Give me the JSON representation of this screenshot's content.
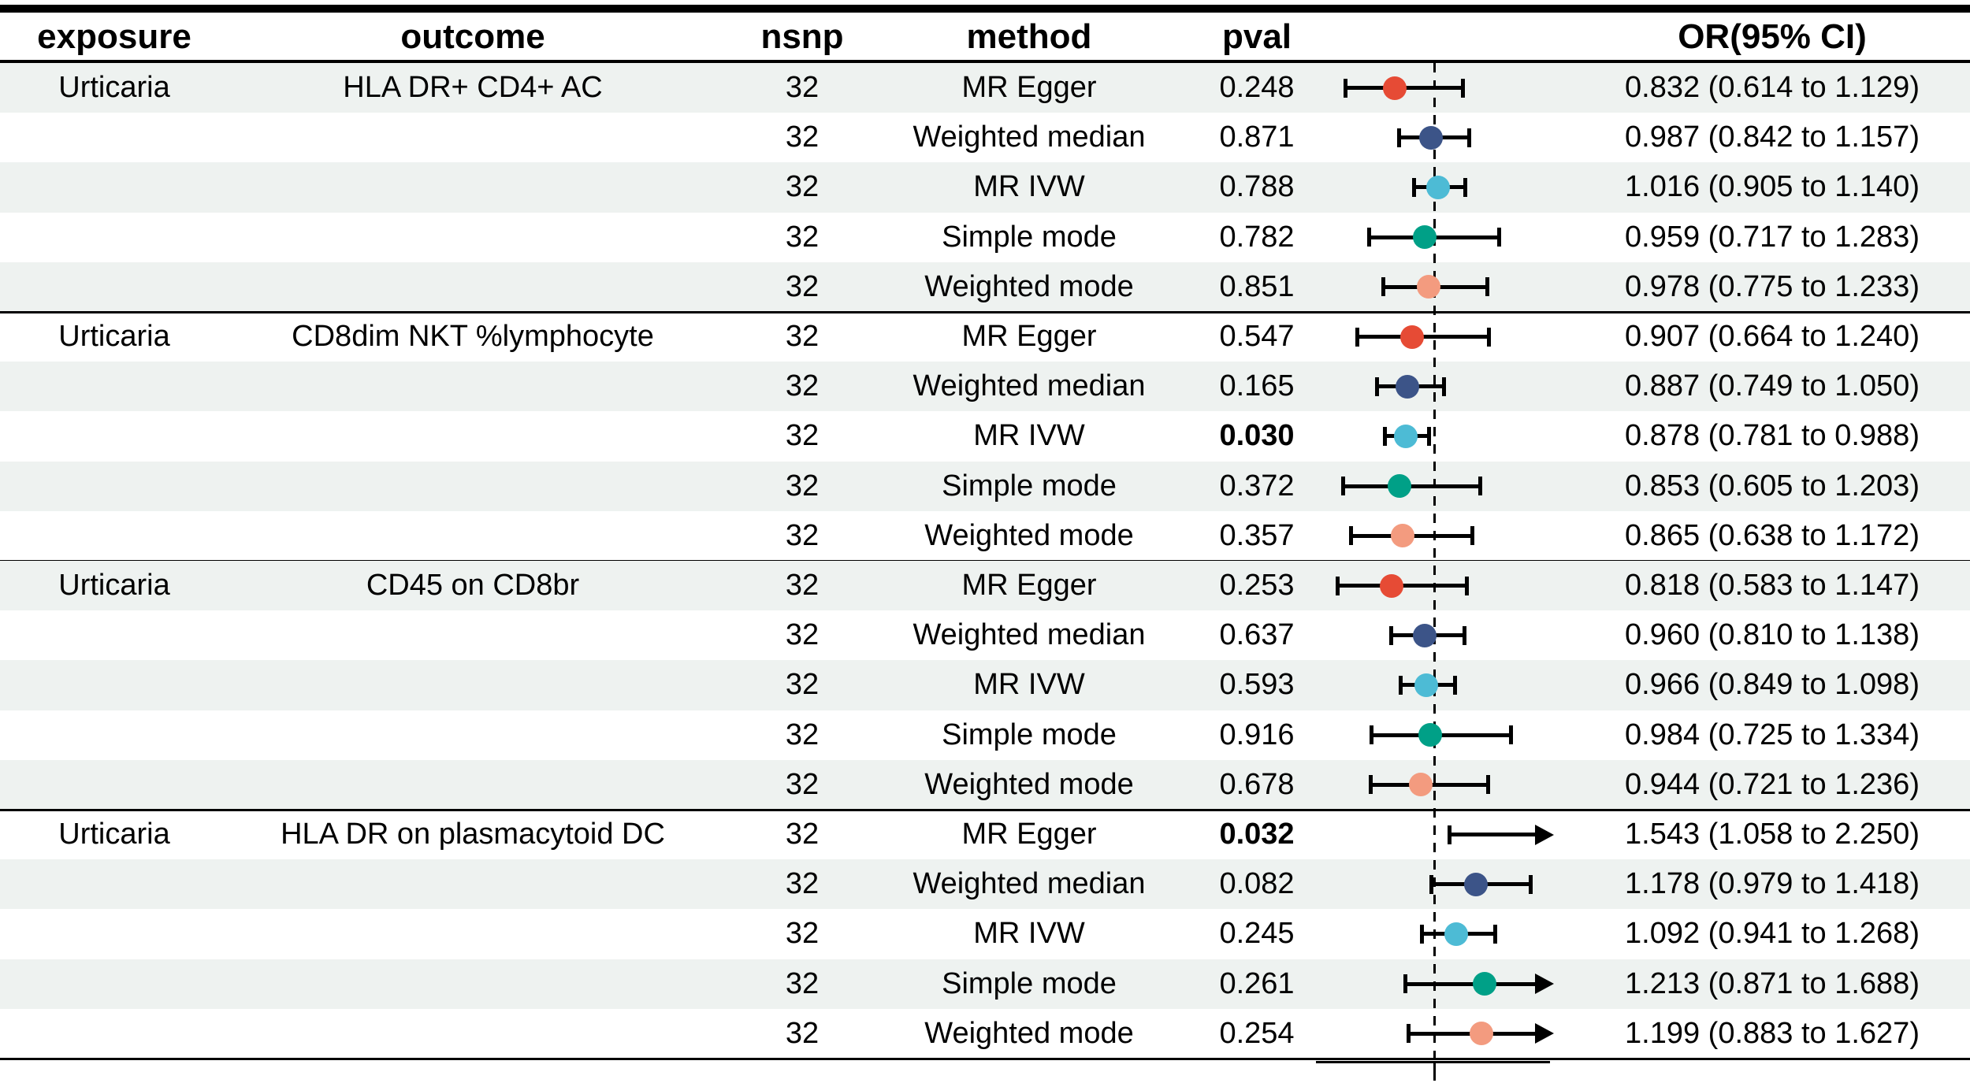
{
  "header": {
    "exposure": "exposure",
    "outcome": "outcome",
    "nsnp": "nsnp",
    "method": "method",
    "pval": "pval",
    "or_ci": "OR(95% CI)"
  },
  "colors": {
    "row_shade": "#EEF2F0",
    "line": "#000000",
    "methods": {
      "MR Egger": "#E64B35",
      "Weighted median": "#3C5488",
      "MR IVW": "#4DBBD5",
      "Simple mode": "#00A087",
      "Weighted mode": "#F39B7F"
    }
  },
  "chart_data": {
    "type": "forest",
    "x_reference": 1.0,
    "x_clip_max": 1.5,
    "scale": "linear",
    "groups": [
      {
        "exposure": "Urticaria",
        "outcome": "HLA DR+ CD4+ AC",
        "rows": [
          {
            "nsnp": "32",
            "method": "MR Egger",
            "pval": "0.248",
            "bold": false,
            "or": 0.832,
            "lo": 0.614,
            "hi": 1.129,
            "or_text": "0.832 (0.614 to 1.129)"
          },
          {
            "nsnp": "32",
            "method": "Weighted median",
            "pval": "0.871",
            "bold": false,
            "or": 0.987,
            "lo": 0.842,
            "hi": 1.157,
            "or_text": "0.987 (0.842 to 1.157)"
          },
          {
            "nsnp": "32",
            "method": "MR IVW",
            "pval": "0.788",
            "bold": false,
            "or": 1.016,
            "lo": 0.905,
            "hi": 1.14,
            "or_text": "1.016 (0.905 to 1.140)"
          },
          {
            "nsnp": "32",
            "method": "Simple mode",
            "pval": "0.782",
            "bold": false,
            "or": 0.959,
            "lo": 0.717,
            "hi": 1.283,
            "or_text": "0.959 (0.717 to 1.283)"
          },
          {
            "nsnp": "32",
            "method": "Weighted mode",
            "pval": "0.851",
            "bold": false,
            "or": 0.978,
            "lo": 0.775,
            "hi": 1.233,
            "or_text": "0.978 (0.775 to 1.233)"
          }
        ]
      },
      {
        "exposure": "Urticaria",
        "outcome": "CD8dim NKT %lymphocyte",
        "rows": [
          {
            "nsnp": "32",
            "method": "MR Egger",
            "pval": "0.547",
            "bold": false,
            "or": 0.907,
            "lo": 0.664,
            "hi": 1.24,
            "or_text": "0.907 (0.664 to 1.240)"
          },
          {
            "nsnp": "32",
            "method": "Weighted median",
            "pval": "0.165",
            "bold": false,
            "or": 0.887,
            "lo": 0.749,
            "hi": 1.05,
            "or_text": "0.887 (0.749 to 1.050)"
          },
          {
            "nsnp": "32",
            "method": "MR IVW",
            "pval": "0.030",
            "bold": true,
            "or": 0.878,
            "lo": 0.781,
            "hi": 0.988,
            "or_text": "0.878 (0.781 to 0.988)"
          },
          {
            "nsnp": "32",
            "method": "Simple mode",
            "pval": "0.372",
            "bold": false,
            "or": 0.853,
            "lo": 0.605,
            "hi": 1.203,
            "or_text": "0.853 (0.605 to 1.203)"
          },
          {
            "nsnp": "32",
            "method": "Weighted mode",
            "pval": "0.357",
            "bold": false,
            "or": 0.865,
            "lo": 0.638,
            "hi": 1.172,
            "or_text": "0.865 (0.638 to 1.172)"
          }
        ]
      },
      {
        "exposure": "Urticaria",
        "outcome": "CD45 on CD8br",
        "rows": [
          {
            "nsnp": "32",
            "method": "MR Egger",
            "pval": "0.253",
            "bold": false,
            "or": 0.818,
            "lo": 0.583,
            "hi": 1.147,
            "or_text": "0.818 (0.583 to 1.147)"
          },
          {
            "nsnp": "32",
            "method": "Weighted median",
            "pval": "0.637",
            "bold": false,
            "or": 0.96,
            "lo": 0.81,
            "hi": 1.138,
            "or_text": "0.960 (0.810 to 1.138)"
          },
          {
            "nsnp": "32",
            "method": "MR IVW",
            "pval": "0.593",
            "bold": false,
            "or": 0.966,
            "lo": 0.849,
            "hi": 1.098,
            "or_text": "0.966 (0.849 to 1.098)"
          },
          {
            "nsnp": "32",
            "method": "Simple mode",
            "pval": "0.916",
            "bold": false,
            "or": 0.984,
            "lo": 0.725,
            "hi": 1.334,
            "or_text": "0.984 (0.725 to 1.334)"
          },
          {
            "nsnp": "32",
            "method": "Weighted mode",
            "pval": "0.678",
            "bold": false,
            "or": 0.944,
            "lo": 0.721,
            "hi": 1.236,
            "or_text": "0.944 (0.721 to 1.236)"
          }
        ]
      },
      {
        "exposure": "Urticaria",
        "outcome": "HLA DR on plasmacytoid DC",
        "rows": [
          {
            "nsnp": "32",
            "method": "MR Egger",
            "pval": "0.032",
            "bold": true,
            "or": 1.543,
            "lo": 1.058,
            "hi": 2.25,
            "or_text": "1.543 (1.058 to 2.250)"
          },
          {
            "nsnp": "32",
            "method": "Weighted median",
            "pval": "0.082",
            "bold": false,
            "or": 1.178,
            "lo": 0.979,
            "hi": 1.418,
            "or_text": "1.178 (0.979 to 1.418)"
          },
          {
            "nsnp": "32",
            "method": "MR IVW",
            "pval": "0.245",
            "bold": false,
            "or": 1.092,
            "lo": 0.941,
            "hi": 1.268,
            "or_text": "1.092 (0.941 to 1.268)"
          },
          {
            "nsnp": "32",
            "method": "Simple mode",
            "pval": "0.261",
            "bold": false,
            "or": 1.213,
            "lo": 0.871,
            "hi": 1.688,
            "or_text": "1.213 (0.871 to 1.688)"
          },
          {
            "nsnp": "32",
            "method": "Weighted mode",
            "pval": "0.254",
            "bold": false,
            "or": 1.199,
            "lo": 0.883,
            "hi": 1.627,
            "or_text": "1.199 (0.883 to 1.627)"
          }
        ]
      }
    ]
  }
}
